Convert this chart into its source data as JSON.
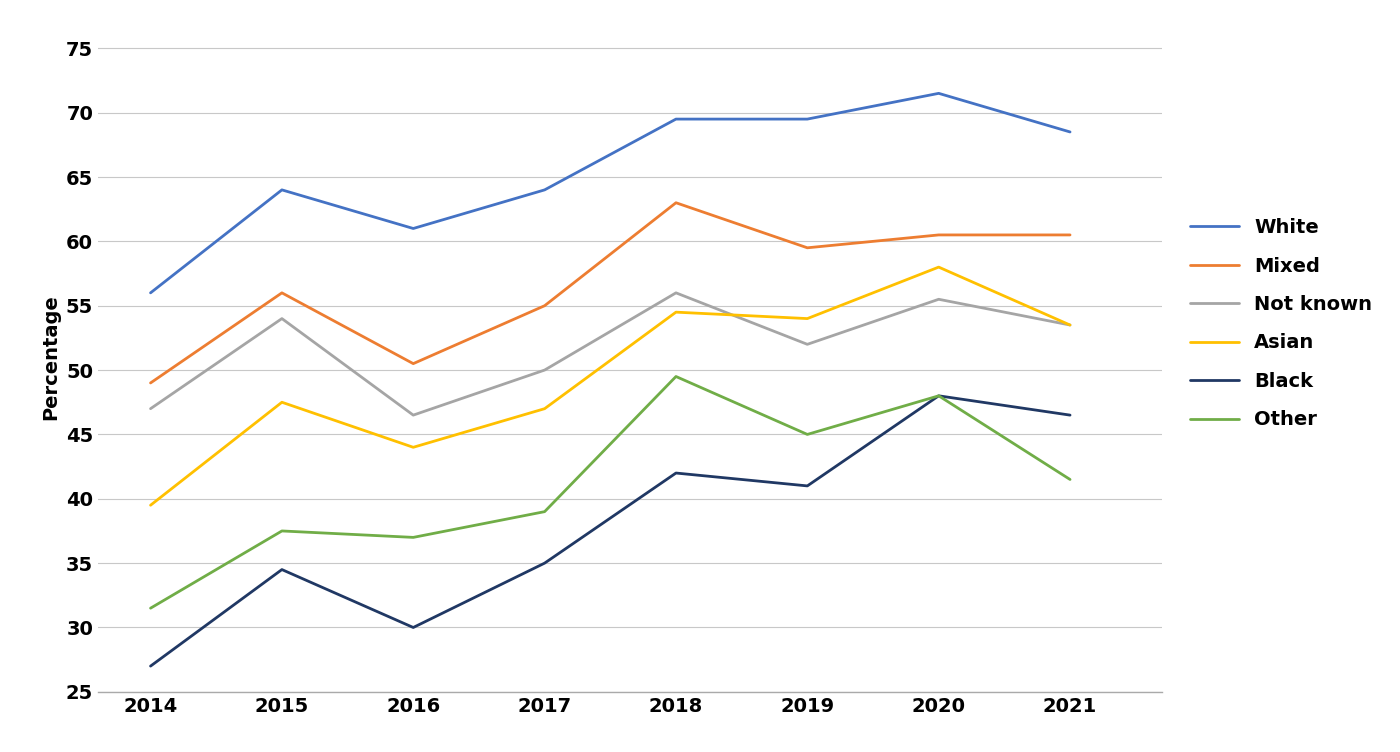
{
  "years": [
    2014,
    2015,
    2016,
    2017,
    2018,
    2019,
    2020,
    2021
  ],
  "series": {
    "White": [
      56,
      64,
      61,
      64,
      69.5,
      69.5,
      71.5,
      68.5
    ],
    "Mixed": [
      49,
      56,
      50.5,
      55,
      63,
      59.5,
      60.5,
      60.5
    ],
    "Not known": [
      47,
      54,
      46.5,
      50,
      56,
      52,
      55.5,
      53.5
    ],
    "Asian": [
      39.5,
      47.5,
      44,
      47,
      54.5,
      54,
      58,
      53.5
    ],
    "Black": [
      27,
      34.5,
      30,
      35,
      42,
      41,
      48,
      46.5
    ],
    "Other": [
      31.5,
      37.5,
      37,
      39,
      49.5,
      45,
      48,
      41.5
    ]
  },
  "colors": {
    "White": "#4472C4",
    "Mixed": "#ED7D31",
    "Not known": "#A5A5A5",
    "Asian": "#FFC000",
    "Black": "#4472C4",
    "Other": "#70AD47"
  },
  "ylabel": "Percentage",
  "ylim": [
    25,
    77
  ],
  "yticks": [
    25,
    30,
    35,
    40,
    45,
    50,
    55,
    60,
    65,
    70,
    75
  ],
  "background_color": "#FFFFFF",
  "grid_color": "#C8C8C8",
  "line_width": 2.0,
  "tick_fontsize": 14,
  "ylabel_fontsize": 14,
  "legend_fontsize": 14
}
